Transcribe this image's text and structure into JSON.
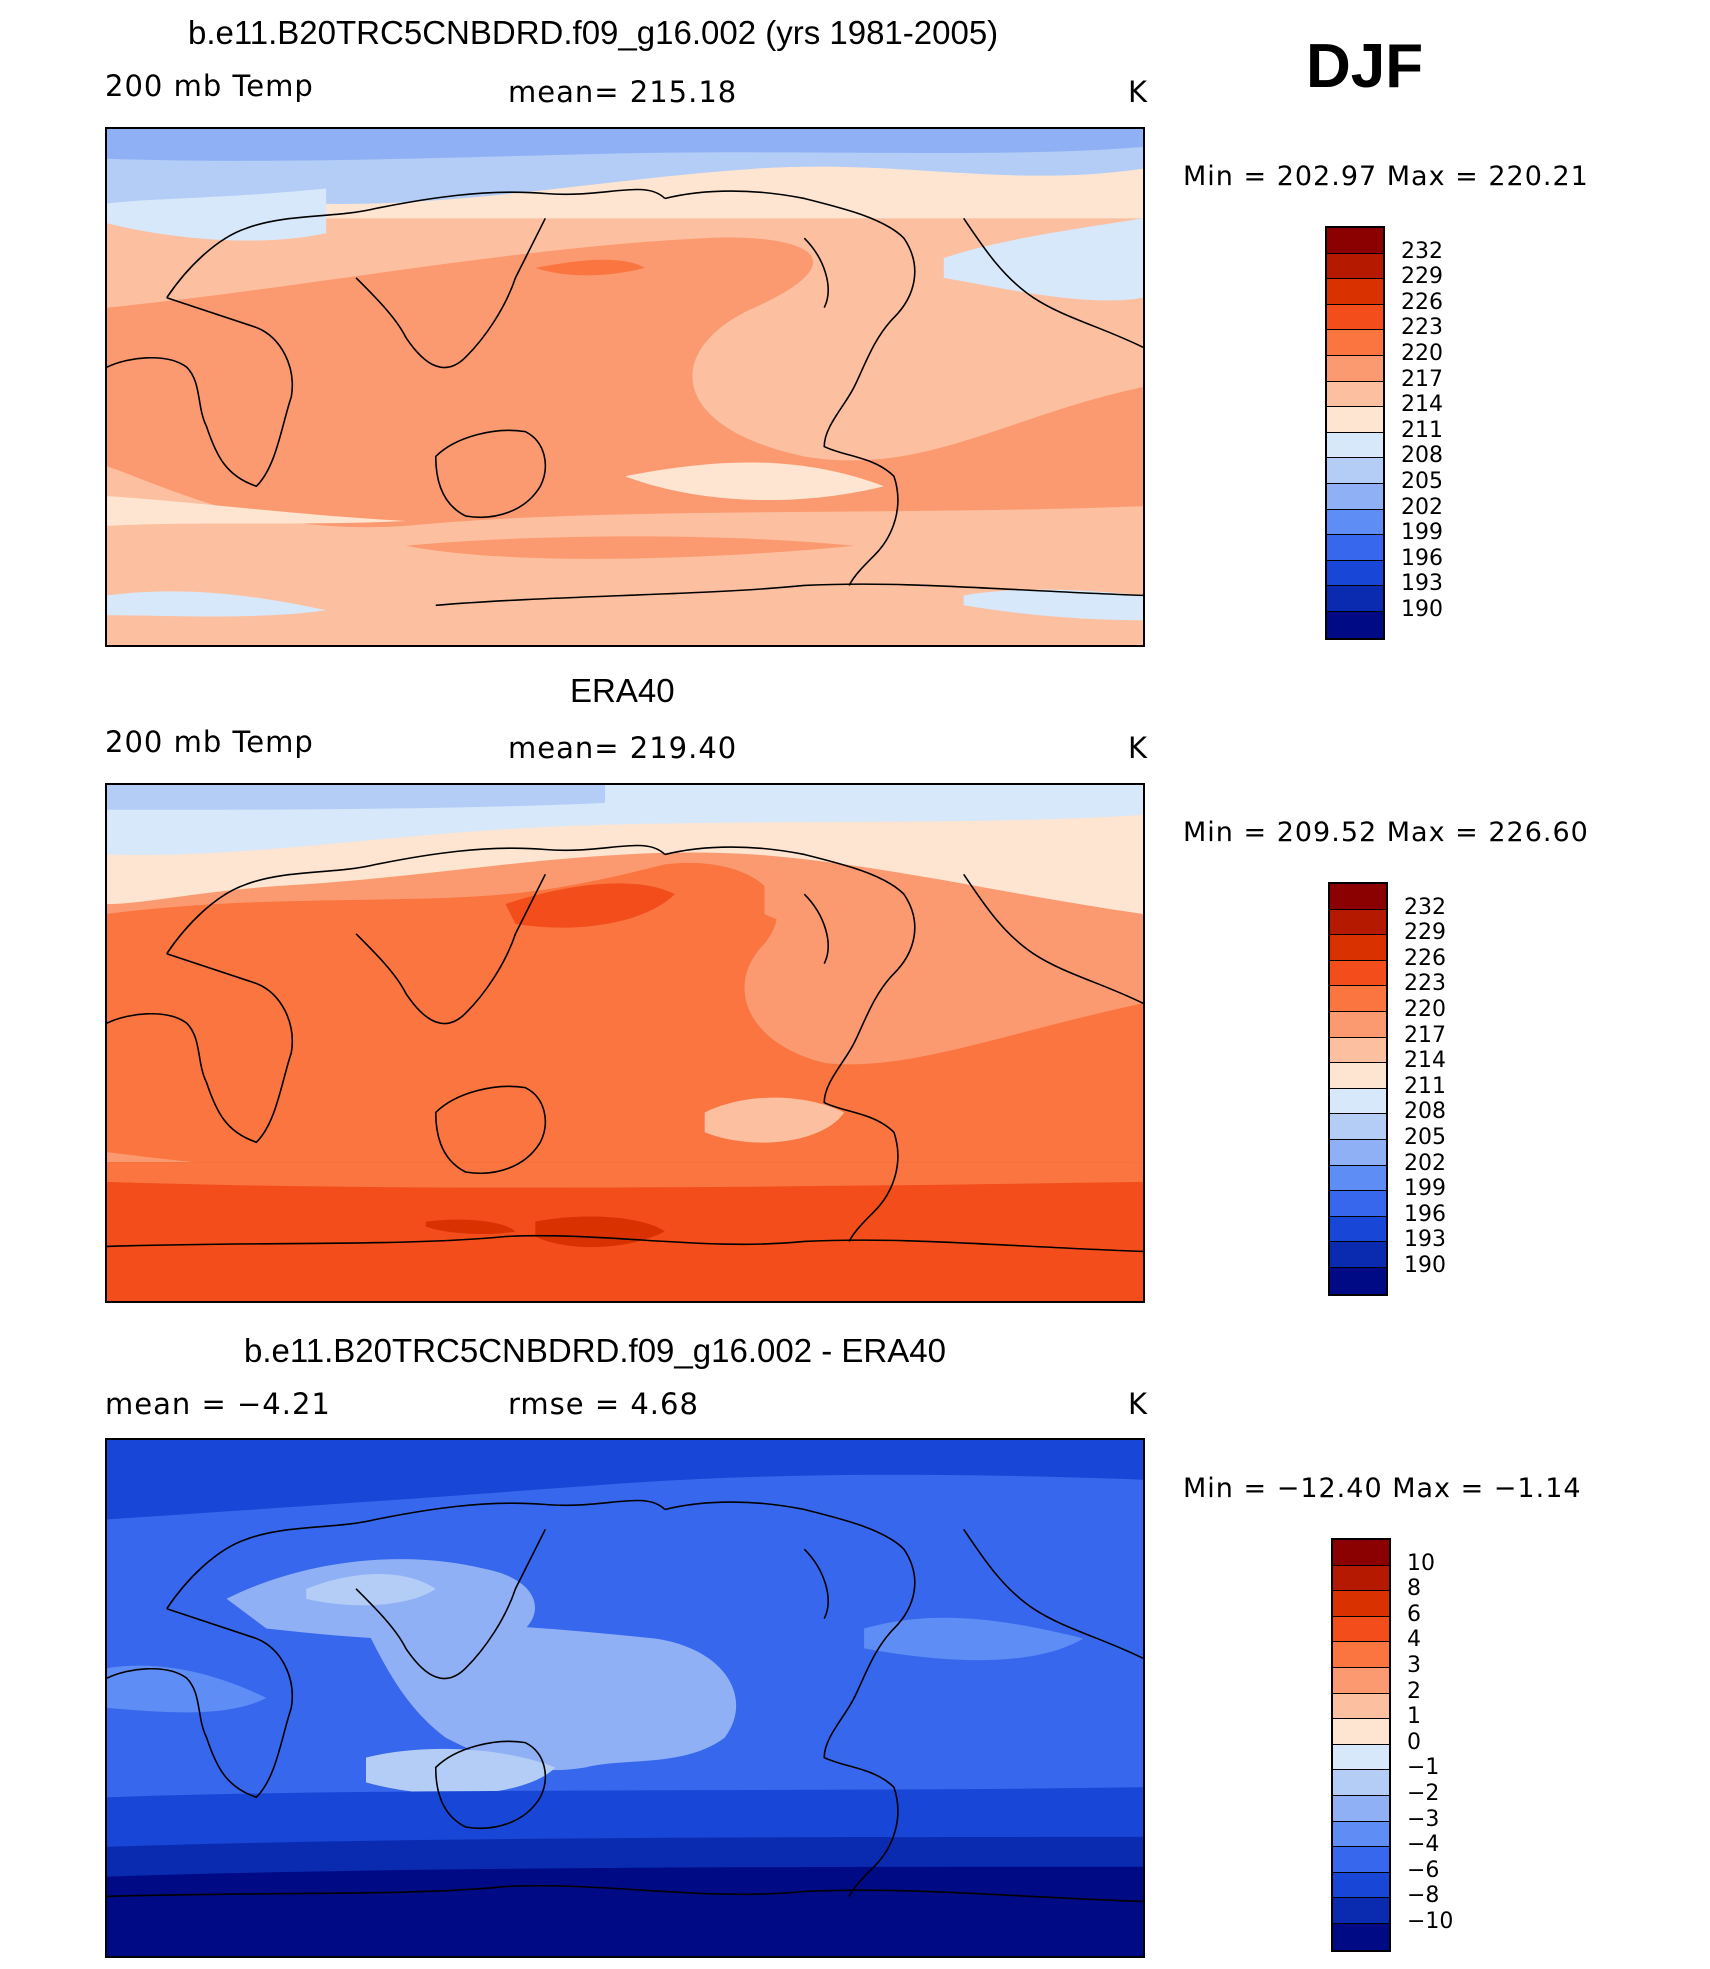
{
  "season": "DJF",
  "panels": [
    {
      "title": "b.e11.B20TRC5CNBDRD.f09_g16.002 (yrs 1981-2005)",
      "left_label": "200 mb Temp",
      "center_label": "mean= 215.18",
      "units": "K",
      "minmax": "Min = 202.97 Max = 220.21",
      "colorbar_labels": [
        "232",
        "229",
        "226",
        "223",
        "220",
        "217",
        "214",
        "211",
        "208",
        "205",
        "202",
        "199",
        "196",
        "193",
        "190"
      ],
      "palette": [
        "#8b0000",
        "#b51a00",
        "#d93100",
        "#f24d1a",
        "#fa7540",
        "#fb9a70",
        "#fcc0a0",
        "#fde5d2",
        "#d7e8fa",
        "#b3cdf6",
        "#8fb0f5",
        "#5e8df5",
        "#3767ec",
        "#1846d6",
        "#0a2bb0",
        "#000a85"
      ]
    },
    {
      "title": "ERA40",
      "left_label": "200 mb Temp",
      "center_label": "mean= 219.40",
      "units": "K",
      "minmax": "Min = 209.52 Max = 226.60",
      "colorbar_labels": [
        "232",
        "229",
        "226",
        "223",
        "220",
        "217",
        "214",
        "211",
        "208",
        "205",
        "202",
        "199",
        "196",
        "193",
        "190"
      ],
      "palette": [
        "#8b0000",
        "#b51a00",
        "#d93100",
        "#f24d1a",
        "#fa7540",
        "#fb9a70",
        "#fcc0a0",
        "#fde5d2",
        "#d7e8fa",
        "#b3cdf6",
        "#8fb0f5",
        "#5e8df5",
        "#3767ec",
        "#1846d6",
        "#0a2bb0",
        "#000a85"
      ]
    },
    {
      "title": "b.e11.B20TRC5CNBDRD.f09_g16.002 - ERA40",
      "left_label": "mean = −4.21",
      "center_label": "rmse = 4.68",
      "units": "K",
      "minmax": "Min = −12.40 Max = −1.14",
      "colorbar_labels": [
        "10",
        "8",
        "6",
        "4",
        "3",
        "2",
        "1",
        "0",
        "−1",
        "−2",
        "−3",
        "−4",
        "−6",
        "−8",
        "−10"
      ],
      "palette": [
        "#8b0000",
        "#b51a00",
        "#d93100",
        "#f24d1a",
        "#fa7540",
        "#fb9a70",
        "#fcc0a0",
        "#fde5d2",
        "#d7e8fa",
        "#b3cdf6",
        "#8fb0f5",
        "#5e8df5",
        "#3767ec",
        "#1846d6",
        "#0a2bb0",
        "#000a85"
      ]
    }
  ]
}
